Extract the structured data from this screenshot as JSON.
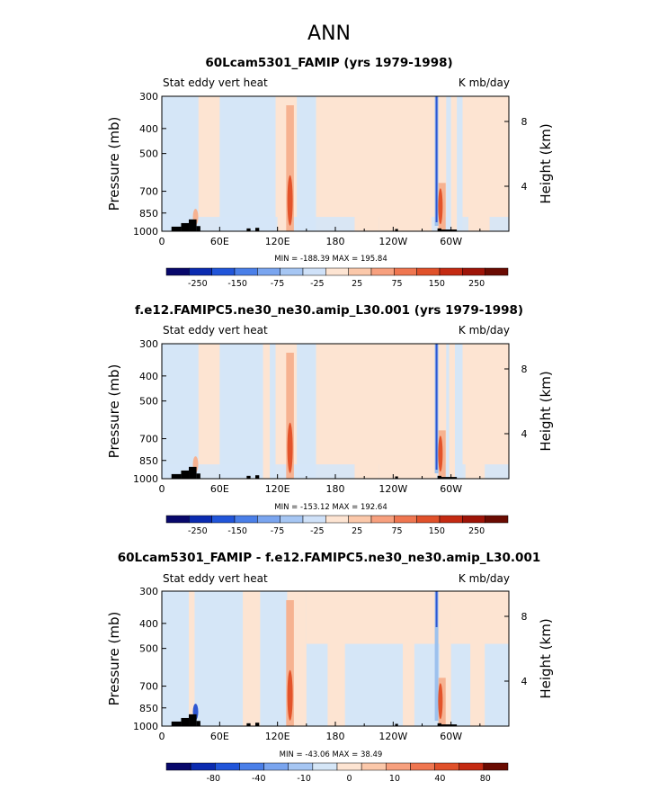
{
  "figure": {
    "title": "ANN"
  },
  "colors": {
    "bg_pos": "#fde4d2",
    "bg_neg": "#d5e6f7",
    "mid_pos": "#f6b291",
    "mid_neg": "#9dc1ed",
    "strong_pos": "#e3532a",
    "strong_neg": "#2f57d2",
    "topography": "#000000"
  },
  "chart_data": [
    {
      "type": "heatmap",
      "title": "60Lcam5301_FAMIP (yrs 1979-1998)",
      "subtitle_left": "Stat eddy vert heat",
      "subtitle_right": "K mb/day",
      "ylabel": "Pressure (mb)",
      "ylabel_right": "Height (km)",
      "x_ticks": [
        "0",
        "60E",
        "120E",
        "180",
        "120W",
        "60W"
      ],
      "y_ticks": [
        "300",
        "400",
        "500",
        "700",
        "850",
        "1000"
      ],
      "y_right_ticks": [
        "8",
        "4"
      ],
      "stats": "MIN = -188.39   MAX = 195.84",
      "colorbar_ticks": [
        "-250",
        "-150",
        "-75",
        "-25",
        "25",
        "75",
        "150",
        "250"
      ],
      "colorbar_colors": [
        "#08086b",
        "#0b2bb0",
        "#2155d9",
        "#4a7fe8",
        "#7aa5ef",
        "#a6c6f3",
        "#cfe1f8",
        "#fde4d2",
        "#fbc8aa",
        "#f7a07e",
        "#ef7650",
        "#e0512a",
        "#c42a12",
        "#9e1408",
        "#6a0b02"
      ]
    },
    {
      "type": "heatmap",
      "title": "f.e12.FAMIPC5.ne30_ne30.amip_L30.001 (yrs 1979-1998)",
      "subtitle_left": "Stat eddy vert heat",
      "subtitle_right": "K mb/day",
      "ylabel": "Pressure (mb)",
      "ylabel_right": "Height (km)",
      "x_ticks": [
        "0",
        "60E",
        "120E",
        "180",
        "120W",
        "60W"
      ],
      "y_ticks": [
        "300",
        "400",
        "500",
        "700",
        "850",
        "1000"
      ],
      "y_right_ticks": [
        "8",
        "4"
      ],
      "stats": "MIN = -153.12   MAX = 192.64",
      "colorbar_ticks": [
        "-250",
        "-150",
        "-75",
        "-25",
        "25",
        "75",
        "150",
        "250"
      ],
      "colorbar_colors": [
        "#08086b",
        "#0b2bb0",
        "#2155d9",
        "#4a7fe8",
        "#7aa5ef",
        "#a6c6f3",
        "#cfe1f8",
        "#fde4d2",
        "#fbc8aa",
        "#f7a07e",
        "#ef7650",
        "#e0512a",
        "#c42a12",
        "#9e1408",
        "#6a0b02"
      ]
    },
    {
      "type": "heatmap",
      "title": "60Lcam5301_FAMIP - f.e12.FAMIPC5.ne30_ne30.amip_L30.001",
      "subtitle_left": "Stat eddy vert heat",
      "subtitle_right": "K mb/day",
      "ylabel": "Pressure (mb)",
      "ylabel_right": "Height (km)",
      "x_ticks": [
        "0",
        "60E",
        "120E",
        "180",
        "120W",
        "60W"
      ],
      "y_ticks": [
        "300",
        "400",
        "500",
        "700",
        "850",
        "1000"
      ],
      "y_right_ticks": [
        "8",
        "4"
      ],
      "stats": "MIN = -43.06   MAX = 38.49",
      "colorbar_ticks": [
        "-80",
        "-40",
        "-10",
        "0",
        "10",
        "40",
        "80"
      ],
      "colorbar_colors": [
        "#08086b",
        "#0b2bb0",
        "#2155d9",
        "#4a7fe8",
        "#7aa5ef",
        "#a6c6f3",
        "#d5e6f7",
        "#fde4d2",
        "#fbc8aa",
        "#f7a07e",
        "#ef7650",
        "#e0512a",
        "#c42a12",
        "#6a0b02"
      ]
    }
  ]
}
